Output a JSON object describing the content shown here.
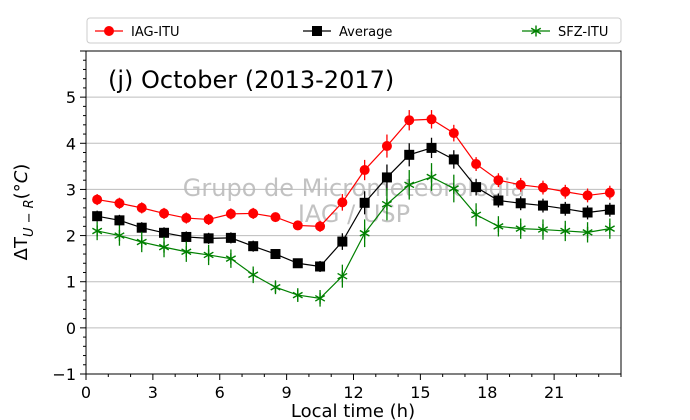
{
  "chart_data": {
    "type": "line",
    "title": "(j) October (2013-2017)",
    "xlabel": "Local time (h)",
    "ylabel": "ΔT_{U-R}(°C)",
    "xlim": [
      0,
      24
    ],
    "ylim": [
      -1,
      6
    ],
    "xticks": [
      0,
      3,
      6,
      9,
      12,
      15,
      18,
      21
    ],
    "yticks": [
      -1,
      0,
      1,
      2,
      3,
      4,
      5
    ],
    "grid": "horizontal",
    "legend_placement": "top, outside plot",
    "watermark": [
      "Grupo de Micrometeorologia",
      "IAG / USP"
    ],
    "x": [
      0.5,
      1.5,
      2.5,
      3.5,
      4.5,
      5.5,
      6.5,
      7.5,
      8.5,
      9.5,
      10.5,
      11.5,
      12.5,
      13.5,
      14.5,
      15.5,
      16.5,
      17.5,
      18.5,
      19.5,
      20.5,
      21.5,
      22.5,
      23.5
    ],
    "series": [
      {
        "name": "IAG-ITU",
        "color": "#ff0000",
        "marker": "circle",
        "values": [
          2.78,
          2.7,
          2.6,
          2.48,
          2.38,
          2.35,
          2.47,
          2.48,
          2.4,
          2.22,
          2.2,
          2.72,
          3.42,
          3.94,
          4.5,
          4.52,
          4.22,
          3.55,
          3.2,
          3.1,
          3.04,
          2.95,
          2.87,
          2.93
        ],
        "errors": [
          0.12,
          0.12,
          0.12,
          0.12,
          0.12,
          0.12,
          0.12,
          0.12,
          0.1,
          0.1,
          0.12,
          0.18,
          0.22,
          0.25,
          0.22,
          0.2,
          0.18,
          0.15,
          0.15,
          0.15,
          0.15,
          0.15,
          0.15,
          0.15
        ]
      },
      {
        "name": "Average",
        "color": "#000000",
        "marker": "square",
        "values": [
          2.42,
          2.33,
          2.17,
          2.06,
          1.97,
          1.94,
          1.95,
          1.77,
          1.6,
          1.4,
          1.33,
          1.87,
          2.71,
          3.26,
          3.75,
          3.9,
          3.65,
          3.05,
          2.76,
          2.7,
          2.65,
          2.58,
          2.5,
          2.56
        ],
        "errors": [
          0.12,
          0.12,
          0.12,
          0.12,
          0.12,
          0.12,
          0.12,
          0.12,
          0.1,
          0.1,
          0.12,
          0.18,
          0.25,
          0.28,
          0.25,
          0.22,
          0.2,
          0.18,
          0.15,
          0.15,
          0.15,
          0.15,
          0.15,
          0.15
        ]
      },
      {
        "name": "SFZ-ITU",
        "color": "#008000",
        "marker": "star",
        "values": [
          2.1,
          2.0,
          1.86,
          1.75,
          1.65,
          1.58,
          1.5,
          1.15,
          0.88,
          0.71,
          0.64,
          1.12,
          2.05,
          2.68,
          3.1,
          3.27,
          3.02,
          2.45,
          2.2,
          2.15,
          2.13,
          2.1,
          2.07,
          2.15
        ],
        "errors": [
          0.2,
          0.22,
          0.22,
          0.22,
          0.22,
          0.22,
          0.2,
          0.18,
          0.15,
          0.15,
          0.18,
          0.25,
          0.3,
          0.35,
          0.32,
          0.3,
          0.3,
          0.25,
          0.22,
          0.22,
          0.22,
          0.22,
          0.22,
          0.22
        ]
      }
    ]
  }
}
